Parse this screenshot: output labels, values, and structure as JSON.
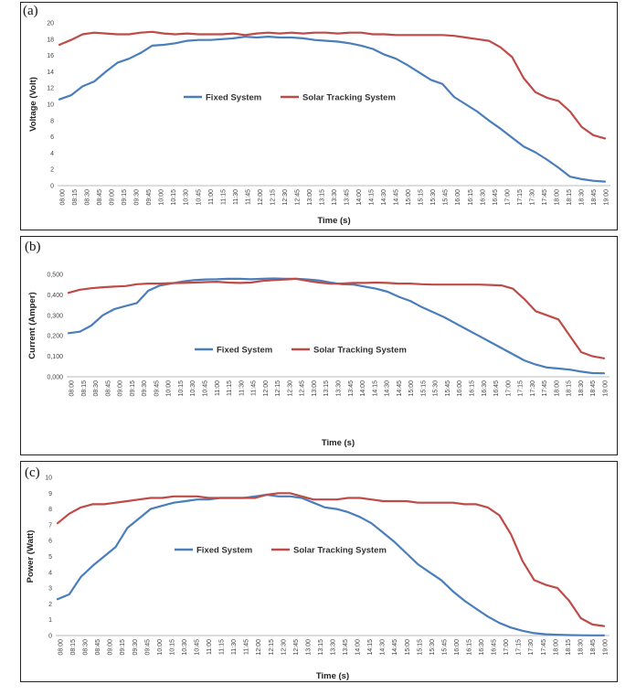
{
  "chart_data": [
    {
      "type": "line",
      "panel_label": "(a)",
      "ylabel": "Voltage (Volt)",
      "xlabel": "Time (s)",
      "ylim": [
        0,
        20
      ],
      "yticks": [
        "0",
        "2",
        "4",
        "6",
        "8",
        "10",
        "12",
        "14",
        "16",
        "18",
        "20"
      ],
      "xticks": [
        "08:00",
        "08:15",
        "08:30",
        "08:45",
        "09:00",
        "09:15",
        "09:30",
        "09:45",
        "10:00",
        "10:15",
        "10:30",
        "10:45",
        "11:00",
        "11:15",
        "11:30",
        "11:45",
        "12:00",
        "12:15",
        "12:30",
        "12:45",
        "13:00",
        "13:15",
        "13:30",
        "13:45",
        "14:00",
        "14:15",
        "14:30",
        "14:45",
        "15:00",
        "15:15",
        "15:30",
        "15:45",
        "16:00",
        "16:15",
        "16:30",
        "16:45",
        "17:00",
        "17:15",
        "17:30",
        "17:45",
        "18:00",
        "18:15",
        "18:30",
        "18:45",
        "19:00"
      ],
      "legend_position": "center-left",
      "series": [
        {
          "name": "Fixed System",
          "color": "#4a7ebb",
          "values": [
            10.6,
            11.1,
            12.2,
            12.8,
            14.0,
            15.1,
            15.6,
            16.3,
            17.2,
            17.3,
            17.5,
            17.8,
            17.9,
            17.9,
            18.0,
            18.1,
            18.3,
            18.2,
            18.3,
            18.2,
            18.2,
            18.1,
            17.9,
            17.8,
            17.7,
            17.5,
            17.2,
            16.8,
            16.1,
            15.6,
            14.8,
            13.9,
            13.0,
            12.5,
            10.9,
            10.0,
            9.1,
            8.0,
            7.0,
            5.9,
            4.8,
            4.1,
            3.2,
            2.2,
            1.1,
            0.8,
            0.6,
            0.5
          ]
        },
        {
          "name": "Solar Tracking System",
          "color": "#be4b48",
          "values": [
            17.3,
            17.9,
            18.6,
            18.8,
            18.7,
            18.6,
            18.6,
            18.8,
            18.9,
            18.7,
            18.6,
            18.7,
            18.6,
            18.6,
            18.6,
            18.7,
            18.5,
            18.7,
            18.8,
            18.7,
            18.8,
            18.7,
            18.8,
            18.8,
            18.7,
            18.8,
            18.8,
            18.6,
            18.6,
            18.5,
            18.5,
            18.5,
            18.5,
            18.5,
            18.4,
            18.2,
            18.0,
            17.8,
            17.0,
            15.8,
            13.2,
            11.5,
            10.8,
            10.4,
            9.1,
            7.2,
            6.2,
            5.8
          ]
        }
      ]
    },
    {
      "type": "line",
      "panel_label": "(b)",
      "ylabel": "Current (Amper)",
      "xlabel": "Time (s)",
      "ylim": [
        0,
        0.5
      ],
      "yticks": [
        "0,000",
        "0,100",
        "0,200",
        "0,300",
        "0,400",
        "0,500"
      ],
      "xticks": [
        "08:00",
        "08:15",
        "08:30",
        "08:45",
        "09:00",
        "09:15",
        "09:30",
        "09:45",
        "10:00",
        "10:15",
        "10:30",
        "10:45",
        "11:00",
        "11:15",
        "11:30",
        "11:45",
        "12:00",
        "12:15",
        "12:30",
        "12:45",
        "13:00",
        "13:15",
        "13:30",
        "13:45",
        "14:00",
        "14:15",
        "14:30",
        "14:45",
        "15:00",
        "15:15",
        "15:30",
        "15:45",
        "16:00",
        "16:15",
        "16:30",
        "16:45",
        "17:00",
        "17:15",
        "17:30",
        "17:45",
        "18:00",
        "18:15",
        "18:30",
        "18:45",
        "19:00"
      ],
      "legend_position": "center-left",
      "series": [
        {
          "name": "Fixed System",
          "color": "#4a7ebb",
          "values": [
            0.213,
            0.22,
            0.25,
            0.3,
            0.33,
            0.345,
            0.36,
            0.42,
            0.445,
            0.455,
            0.465,
            0.472,
            0.475,
            0.476,
            0.478,
            0.478,
            0.476,
            0.478,
            0.48,
            0.478,
            0.478,
            0.475,
            0.47,
            0.46,
            0.452,
            0.45,
            0.44,
            0.43,
            0.415,
            0.39,
            0.37,
            0.34,
            0.315,
            0.29,
            0.26,
            0.23,
            0.2,
            0.17,
            0.14,
            0.11,
            0.08,
            0.06,
            0.045,
            0.04,
            0.035,
            0.025,
            0.018,
            0.017
          ]
        },
        {
          "name": "Solar Tracking System",
          "color": "#be4b48",
          "values": [
            0.41,
            0.425,
            0.432,
            0.437,
            0.44,
            0.443,
            0.452,
            0.455,
            0.455,
            0.457,
            0.458,
            0.46,
            0.462,
            0.464,
            0.46,
            0.458,
            0.46,
            0.468,
            0.472,
            0.475,
            0.478,
            0.468,
            0.46,
            0.455,
            0.455,
            0.458,
            0.458,
            0.46,
            0.458,
            0.455,
            0.455,
            0.452,
            0.45,
            0.45,
            0.45,
            0.45,
            0.45,
            0.448,
            0.446,
            0.43,
            0.38,
            0.32,
            0.3,
            0.28,
            0.2,
            0.12,
            0.1,
            0.09
          ]
        }
      ]
    },
    {
      "type": "line",
      "panel_label": "(c)",
      "ylabel": "Power (Watt)",
      "xlabel": "Time (s)",
      "ylim": [
        0,
        10
      ],
      "yticks": [
        "0",
        "1",
        "2",
        "3",
        "4",
        "5",
        "6",
        "7",
        "8",
        "9",
        "10"
      ],
      "xticks": [
        "08:00",
        "08:15",
        "08:30",
        "08:45",
        "09:00",
        "09:15",
        "09:30",
        "09:45",
        "10:00",
        "10:15",
        "10:30",
        "10:45",
        "11:00",
        "11:15",
        "11:30",
        "11:45",
        "12:00",
        "12:15",
        "12:30",
        "12:45",
        "13:00",
        "13:15",
        "13:30",
        "13:45",
        "14:00",
        "14:15",
        "14:30",
        "14:45",
        "15:00",
        "15:15",
        "15:30",
        "15:45",
        "16:00",
        "16:15",
        "16:30",
        "16:45",
        "17:00",
        "17:15",
        "17:30",
        "17:45",
        "18:00",
        "18:15",
        "18:30",
        "18:45",
        "19:00"
      ],
      "legend_position": "center-left",
      "series": [
        {
          "name": "Fixed System",
          "color": "#4a7ebb",
          "values": [
            2.3,
            2.6,
            3.7,
            4.4,
            5.0,
            5.6,
            6.8,
            7.4,
            8.0,
            8.2,
            8.4,
            8.5,
            8.6,
            8.6,
            8.7,
            8.7,
            8.7,
            8.8,
            8.9,
            8.8,
            8.8,
            8.7,
            8.4,
            8.1,
            8.0,
            7.8,
            7.5,
            7.1,
            6.5,
            5.9,
            5.2,
            4.5,
            4.0,
            3.5,
            2.8,
            2.2,
            1.7,
            1.2,
            0.8,
            0.5,
            0.3,
            0.15,
            0.08,
            0.05,
            0.03,
            0.02,
            0.01,
            0.01
          ]
        },
        {
          "name": "Solar Tracking System",
          "color": "#be4b48",
          "values": [
            7.1,
            7.7,
            8.1,
            8.3,
            8.3,
            8.4,
            8.5,
            8.6,
            8.7,
            8.7,
            8.8,
            8.8,
            8.8,
            8.7,
            8.7,
            8.7,
            8.7,
            8.7,
            8.9,
            9.0,
            9.0,
            8.8,
            8.6,
            8.6,
            8.6,
            8.7,
            8.7,
            8.6,
            8.5,
            8.5,
            8.5,
            8.4,
            8.4,
            8.4,
            8.4,
            8.3,
            8.3,
            8.1,
            7.6,
            6.4,
            4.7,
            3.5,
            3.2,
            3.0,
            2.2,
            1.1,
            0.7,
            0.6
          ]
        }
      ]
    }
  ]
}
